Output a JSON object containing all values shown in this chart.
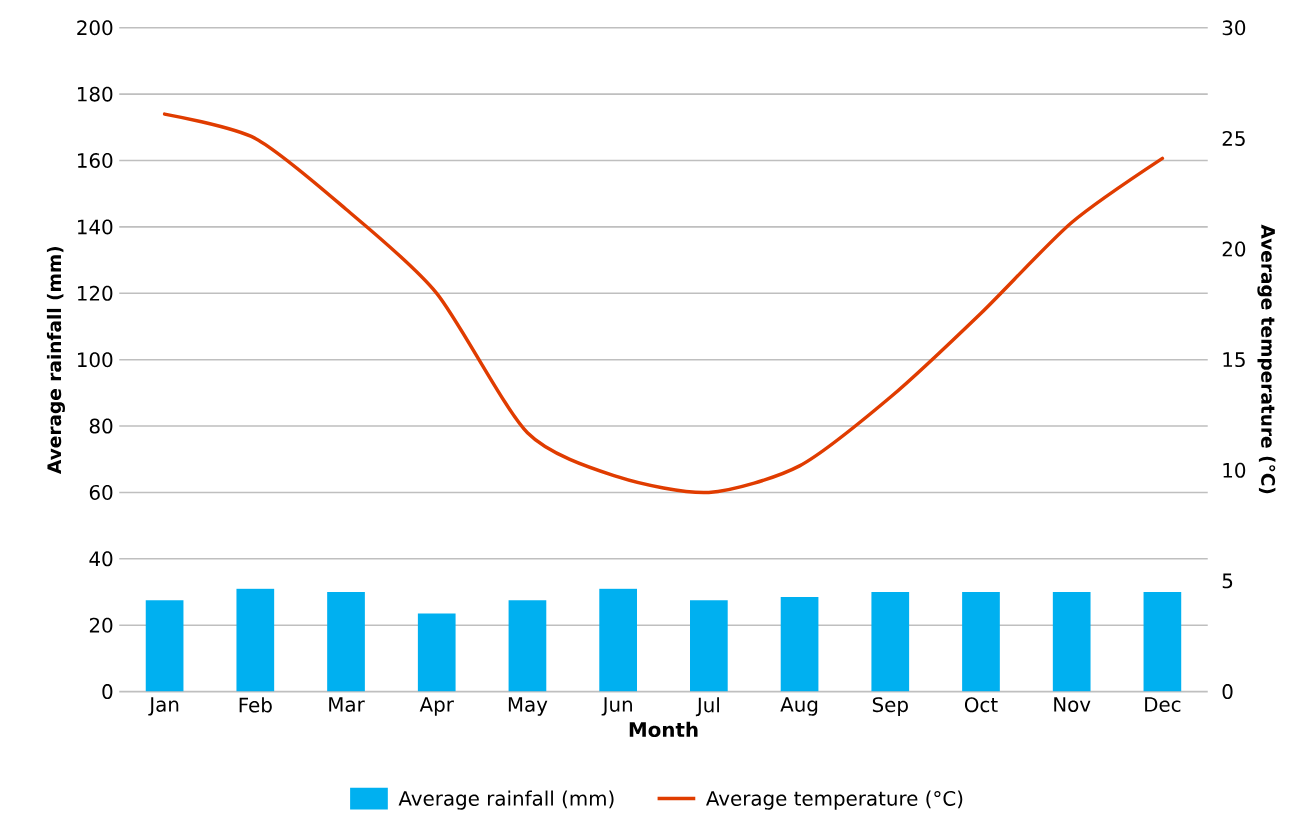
{
  "chart_data": {
    "type": "bar",
    "xlabel": "Month",
    "ylabel": "Average rainfall (mm)",
    "y2label": "Average temperature (°C)",
    "categories": [
      "Jan",
      "Feb",
      "Mar",
      "Apr",
      "May",
      "Jun",
      "Jul",
      "Aug",
      "Sep",
      "Oct",
      "Nov",
      "Dec"
    ],
    "series": [
      {
        "name": "Average rainfall (mm)",
        "color": "#00b0f0",
        "values": [
          27.5,
          31,
          30,
          23.5,
          27.5,
          31,
          27.5,
          28.5,
          30,
          30,
          30,
          30
        ]
      },
      {
        "name": "Average temperature (°C)",
        "type": "line",
        "axis": "y2",
        "color": "#e03c00",
        "values": [
          26.1,
          25.0,
          21.8,
          18.0,
          11.7,
          9.7,
          9.0,
          10.2,
          13.3,
          17.1,
          21.2,
          24.1
        ]
      }
    ],
    "ylim": [
      0,
      200
    ],
    "yticks": [
      0,
      20,
      40,
      60,
      80,
      100,
      120,
      140,
      160,
      180,
      200
    ],
    "y2lim": [
      0,
      30
    ],
    "y2ticks": [
      0,
      5,
      10,
      15,
      20,
      25,
      30
    ],
    "grid": "y",
    "legend": "bottom",
    "marker": "none",
    "line_style": "solid"
  }
}
